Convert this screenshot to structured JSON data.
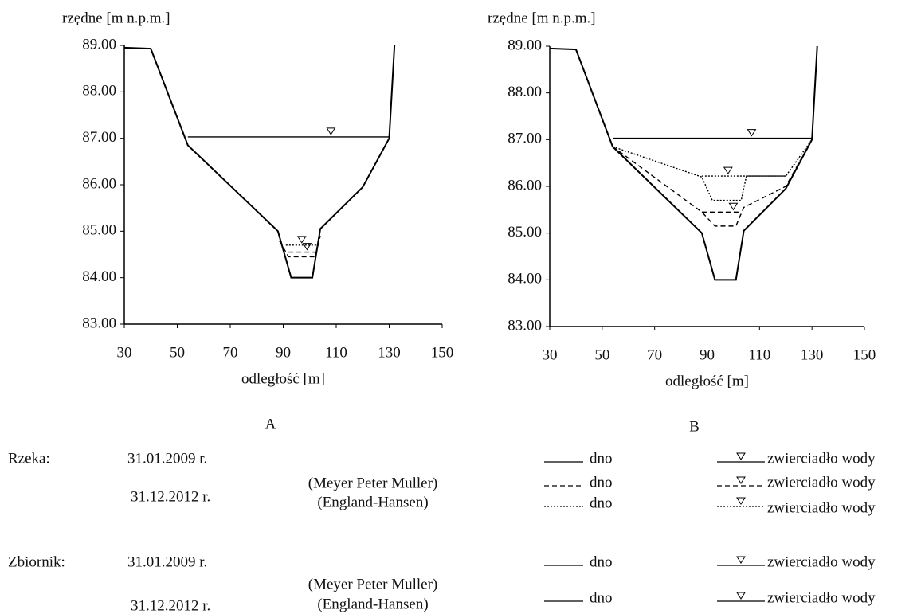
{
  "chart_data": [
    {
      "type": "line",
      "panel_label": "A",
      "y_label": "rzędne [m n.p.m.]",
      "x_label": "odległość [m]",
      "xlim": [
        30,
        150
      ],
      "xticks": [
        30,
        50,
        70,
        90,
        110,
        130,
        150
      ],
      "ylim": [
        83,
        89
      ],
      "yticks": [
        {
          "value": 83,
          "label": "83.00"
        },
        {
          "value": 84,
          "label": "84.00"
        },
        {
          "value": 85,
          "label": "85.00"
        },
        {
          "value": 86,
          "label": "86.00"
        },
        {
          "value": 87,
          "label": "87.00"
        },
        {
          "value": 88,
          "label": "88.00"
        },
        {
          "value": 89,
          "label": "89.00"
        }
      ],
      "color": "#000000",
      "series": [
        {
          "dash": "solid",
          "x": [
            30,
            40,
            54,
            88,
            93,
            101,
            104,
            120,
            130,
            132
          ],
          "values": [
            88.95,
            88.93,
            86.85,
            85.0,
            84.0,
            84.0,
            85.05,
            85.95,
            87.0,
            89.0
          ]
        },
        {
          "dash": "solid",
          "x": [
            54,
            130
          ],
          "values": [
            87.03,
            87.03
          ],
          "marker_x": 108
        },
        {
          "dash": "dashed",
          "x": [
            88.5,
            92,
            102,
            104
          ],
          "values": [
            84.8,
            84.45,
            84.45,
            84.9
          ]
        },
        {
          "dash": "dashed",
          "x": [
            92,
            103
          ],
          "values": [
            84.55,
            84.55
          ],
          "marker_x": 99
        },
        {
          "dash": "dotted",
          "x": [
            91,
            104
          ],
          "values": [
            84.7,
            84.7
          ],
          "marker_x": 97
        }
      ]
    },
    {
      "type": "line",
      "panel_label": "B",
      "y_label": "rzędne [m n.p.m.]",
      "x_label": "odległość [m]",
      "xlim": [
        30,
        150
      ],
      "xticks": [
        30,
        50,
        70,
        90,
        110,
        130,
        150
      ],
      "ylim": [
        83,
        89
      ],
      "yticks": [
        {
          "value": 83,
          "label": "83.00"
        },
        {
          "value": 84,
          "label": "84.00"
        },
        {
          "value": 85,
          "label": "85.00"
        },
        {
          "value": 86,
          "label": "86.00"
        },
        {
          "value": 87,
          "label": "87.00"
        },
        {
          "value": 88,
          "label": "88.00"
        },
        {
          "value": 89,
          "label": "89.00"
        }
      ],
      "color": "#000000",
      "series": [
        {
          "dash": "solid",
          "x": [
            30,
            40,
            54,
            88,
            93,
            101,
            104,
            120,
            130,
            132
          ],
          "values": [
            88.95,
            88.93,
            86.85,
            85.0,
            84.0,
            84.0,
            85.05,
            85.95,
            87.0,
            89.0
          ]
        },
        {
          "dash": "solid",
          "x": [
            54,
            130
          ],
          "values": [
            87.03,
            87.03
          ],
          "marker_x": 107
        },
        {
          "dash": "dashed",
          "x": [
            54,
            88,
            93,
            101,
            104,
            120,
            130
          ],
          "values": [
            86.85,
            85.45,
            85.15,
            85.15,
            85.55,
            86.0,
            87.0
          ]
        },
        {
          "dash": "dashed",
          "x": [
            88,
            103
          ],
          "values": [
            85.45,
            85.45
          ],
          "marker_x": 100
        },
        {
          "dash": "dotted",
          "x": [
            54,
            88,
            92,
            103,
            105,
            120,
            130
          ],
          "values": [
            86.85,
            86.2,
            85.7,
            85.7,
            86.22,
            86.22,
            87.0
          ]
        },
        {
          "dash": "dotted",
          "x": [
            88,
            120
          ],
          "values": [
            86.22,
            86.22
          ],
          "marker_x": 98
        }
      ]
    }
  ],
  "legend": {
    "groups": [
      {
        "label": "Rzeka:",
        "dates": [
          "31.01.2009 r.",
          "31.12.2012 r."
        ],
        "methods": [
          "(Meyer Peter Muller)",
          "(England-Hansen)"
        ],
        "entries": [
          {
            "line": "solid",
            "bed": "dno",
            "water": "zwierciadło wody"
          },
          {
            "line": "dashed",
            "bed": "dno",
            "water": "zwierciadło wody"
          },
          {
            "line": "dotted",
            "bed": "dno",
            "water": "zwierciadło wody"
          }
        ]
      },
      {
        "label": "Zbiornik:",
        "dates": [
          "31.01.2009 r.",
          "31.12.2012 r."
        ],
        "methods": [
          "(Meyer Peter Muller)",
          "(England-Hansen)"
        ],
        "entries": [
          {
            "line": "solid",
            "bed": "dno",
            "water": "zwierciadło wody"
          },
          {
            "line": "solid",
            "bed": "dno",
            "water": "zwierciadło wody"
          }
        ]
      }
    ]
  }
}
